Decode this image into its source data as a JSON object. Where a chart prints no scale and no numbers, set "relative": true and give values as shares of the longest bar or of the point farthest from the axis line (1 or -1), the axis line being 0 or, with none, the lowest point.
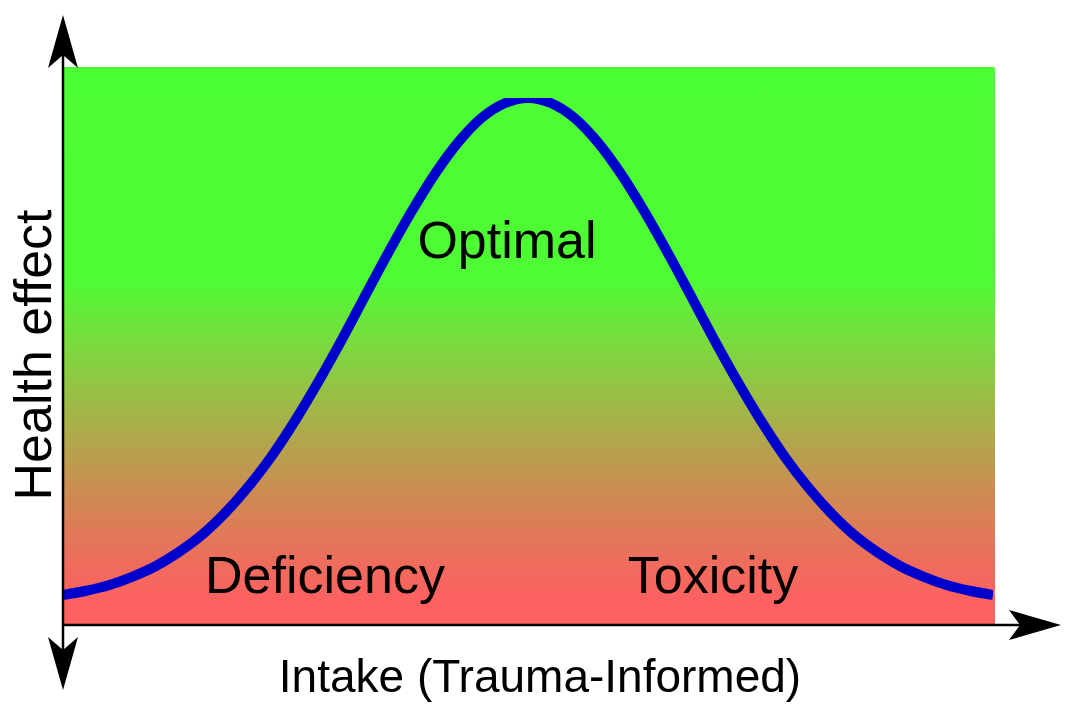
{
  "chart_data": {
    "type": "line",
    "relative": true,
    "xlabel": "Intake (Trauma-Informed)",
    "ylabel": "Health effect",
    "categories": [
      null,
      null,
      null,
      null,
      null,
      null,
      null,
      null,
      null,
      null,
      null,
      null,
      null,
      null,
      null,
      null,
      null,
      null,
      null,
      null,
      null,
      null,
      null,
      null,
      null,
      null,
      null,
      null,
      null,
      null,
      null,
      null,
      null,
      null,
      null,
      null,
      null,
      null,
      null,
      null,
      null
    ],
    "series": [
      {
        "color": "#0000cc",
        "values": [
          0.057,
          0.065,
          0.076,
          0.092,
          0.112,
          0.139,
          0.172,
          0.214,
          0.264,
          0.322,
          0.389,
          0.463,
          0.542,
          0.625,
          0.707,
          0.785,
          0.856,
          0.916,
          0.962,
          0.99,
          1.0,
          0.99,
          0.962,
          0.916,
          0.856,
          0.785,
          0.707,
          0.625,
          0.542,
          0.463,
          0.389,
          0.322,
          0.264,
          0.214,
          0.172,
          0.139,
          0.112,
          0.092,
          0.076,
          0.065,
          0.057
        ]
      }
    ],
    "annotations": [
      "Optimal",
      "Deficiency",
      "Toxicity"
    ],
    "marker": "none",
    "line_style": "solid"
  }
}
